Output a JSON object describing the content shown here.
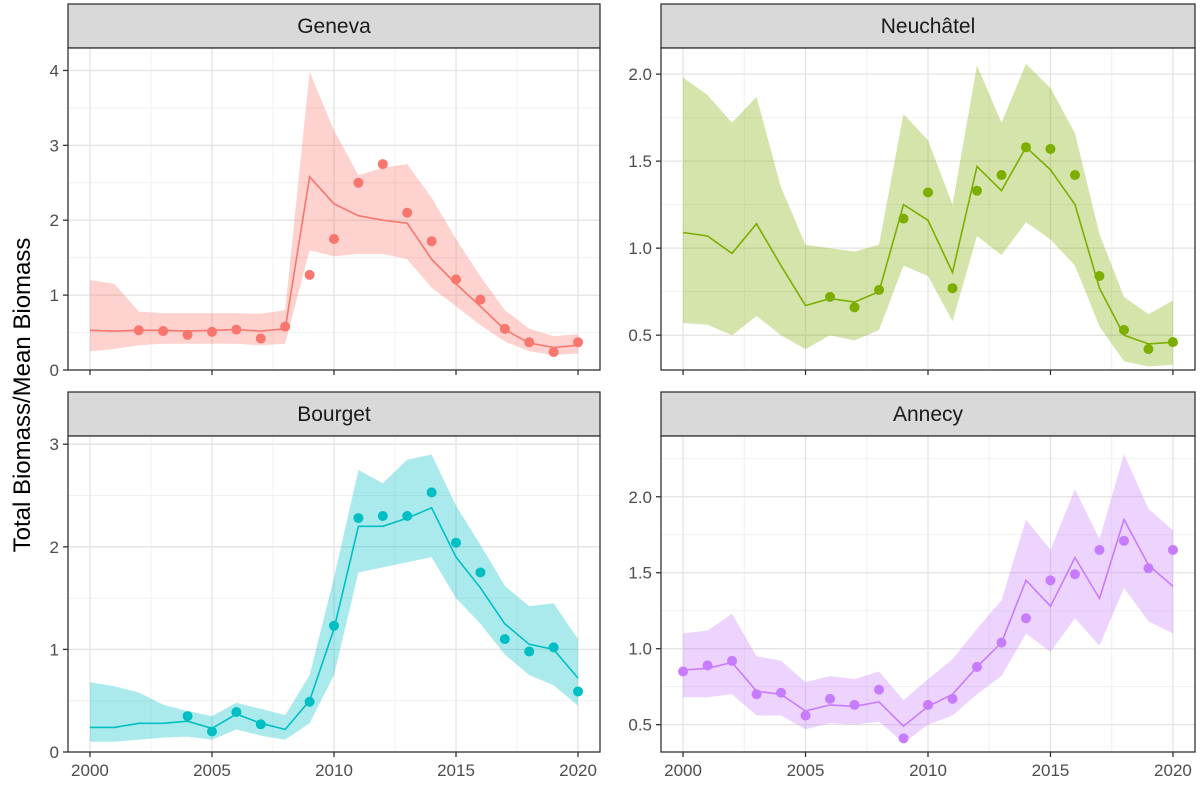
{
  "figure": {
    "ylabel": "Total Biomass/Mean Biomass"
  },
  "chart_data": [
    {
      "type": "line",
      "title": "Geneva",
      "color": "#F8766D",
      "xlim": [
        1999.1,
        2020.9
      ],
      "ylim": [
        0,
        4.3
      ],
      "x_ticks": [
        2000,
        2005,
        2010,
        2015,
        2020
      ],
      "y_ticks": [
        0,
        1,
        2,
        3,
        4
      ],
      "y_tick_labels": [
        "0",
        "1",
        "2",
        "3",
        "4"
      ],
      "grid": true,
      "x": [
        2000,
        2001,
        2002,
        2003,
        2004,
        2005,
        2006,
        2007,
        2008,
        2009,
        2010,
        2011,
        2012,
        2013,
        2014,
        2015,
        2016,
        2017,
        2018,
        2019,
        2020
      ],
      "fitted": [
        0.53,
        0.52,
        0.53,
        0.53,
        0.52,
        0.53,
        0.54,
        0.52,
        0.55,
        2.58,
        2.22,
        2.06,
        2.0,
        1.96,
        1.48,
        1.15,
        0.85,
        0.54,
        0.36,
        0.3,
        0.33
      ],
      "lower": [
        0.25,
        0.28,
        0.33,
        0.35,
        0.35,
        0.35,
        0.35,
        0.33,
        0.35,
        1.6,
        1.52,
        1.55,
        1.55,
        1.48,
        1.1,
        0.85,
        0.6,
        0.38,
        0.25,
        0.2,
        0.22
      ],
      "upper": [
        1.2,
        1.15,
        0.78,
        0.76,
        0.76,
        0.76,
        0.76,
        0.75,
        0.8,
        3.98,
        3.2,
        2.6,
        2.7,
        2.75,
        2.3,
        1.75,
        1.25,
        0.8,
        0.55,
        0.45,
        0.48
      ],
      "obs_x": [
        2002,
        2003,
        2004,
        2005,
        2006,
        2007,
        2008,
        2009,
        2010,
        2011,
        2012,
        2013,
        2014,
        2015,
        2016,
        2017,
        2018,
        2019,
        2020
      ],
      "obs_y": [
        0.53,
        0.52,
        0.47,
        0.51,
        0.54,
        0.42,
        0.58,
        1.27,
        1.75,
        2.5,
        2.75,
        2.1,
        1.72,
        1.21,
        0.94,
        0.55,
        0.37,
        0.24,
        0.37
      ]
    },
    {
      "type": "line",
      "title": "Neuchâtel",
      "color": "#7CAE00",
      "xlim": [
        1999.1,
        2020.9
      ],
      "ylim": [
        0.3,
        2.15
      ],
      "x_ticks": [
        2000,
        2005,
        2010,
        2015,
        2020
      ],
      "y_ticks": [
        0.5,
        1.0,
        1.5,
        2.0
      ],
      "y_tick_labels": [
        "0.5",
        "1.0",
        "1.5",
        "2.0"
      ],
      "grid": true,
      "x": [
        2000,
        2001,
        2002,
        2003,
        2004,
        2005,
        2006,
        2007,
        2008,
        2009,
        2010,
        2011,
        2012,
        2013,
        2014,
        2015,
        2016,
        2017,
        2018,
        2019,
        2020
      ],
      "fitted": [
        1.09,
        1.07,
        0.97,
        1.14,
        0.9,
        0.67,
        0.71,
        0.69,
        0.75,
        1.25,
        1.16,
        0.86,
        1.47,
        1.33,
        1.58,
        1.45,
        1.25,
        0.77,
        0.5,
        0.45,
        0.46
      ],
      "lower": [
        0.57,
        0.56,
        0.5,
        0.61,
        0.5,
        0.42,
        0.5,
        0.47,
        0.53,
        0.9,
        0.84,
        0.58,
        1.07,
        0.96,
        1.15,
        1.05,
        0.9,
        0.55,
        0.35,
        0.32,
        0.33
      ],
      "upper": [
        1.98,
        1.88,
        1.72,
        1.87,
        1.35,
        1.02,
        1.0,
        0.98,
        1.02,
        1.77,
        1.62,
        1.25,
        2.05,
        1.72,
        2.06,
        1.92,
        1.66,
        1.08,
        0.72,
        0.62,
        0.7
      ],
      "obs_x": [
        2006,
        2007,
        2008,
        2009,
        2010,
        2011,
        2012,
        2013,
        2014,
        2015,
        2016,
        2017,
        2018,
        2019,
        2020
      ],
      "obs_y": [
        0.72,
        0.66,
        0.76,
        1.17,
        1.32,
        0.77,
        1.33,
        1.42,
        1.58,
        1.57,
        1.42,
        0.84,
        0.53,
        0.42,
        0.46
      ]
    },
    {
      "type": "line",
      "title": "Bourget",
      "color": "#00BFC4",
      "xlim": [
        1999.1,
        2020.9
      ],
      "ylim": [
        0,
        3.08
      ],
      "x_ticks": [
        2000,
        2005,
        2010,
        2015,
        2020
      ],
      "y_ticks": [
        0,
        1,
        2,
        3
      ],
      "y_tick_labels": [
        "0",
        "1",
        "2",
        "3"
      ],
      "grid": true,
      "x": [
        2000,
        2001,
        2002,
        2003,
        2004,
        2005,
        2006,
        2007,
        2008,
        2009,
        2010,
        2011,
        2012,
        2013,
        2014,
        2015,
        2016,
        2017,
        2018,
        2019,
        2020
      ],
      "fitted": [
        0.24,
        0.24,
        0.28,
        0.28,
        0.3,
        0.23,
        0.37,
        0.28,
        0.22,
        0.5,
        1.2,
        2.2,
        2.2,
        2.28,
        2.38,
        1.9,
        1.6,
        1.25,
        1.05,
        1.0,
        0.72
      ],
      "lower": [
        0.1,
        0.1,
        0.12,
        0.14,
        0.15,
        0.12,
        0.22,
        0.16,
        0.12,
        0.28,
        0.75,
        1.75,
        1.8,
        1.85,
        1.9,
        1.5,
        1.25,
        0.95,
        0.75,
        0.65,
        0.45
      ],
      "upper": [
        0.68,
        0.64,
        0.58,
        0.46,
        0.4,
        0.35,
        0.48,
        0.42,
        0.36,
        0.75,
        1.7,
        2.75,
        2.62,
        2.85,
        2.9,
        2.4,
        2.02,
        1.62,
        1.42,
        1.45,
        1.1
      ],
      "obs_x": [
        2004,
        2005,
        2006,
        2007,
        2009,
        2010,
        2011,
        2012,
        2013,
        2014,
        2015,
        2016,
        2017,
        2018,
        2019,
        2020
      ],
      "obs_y": [
        0.35,
        0.2,
        0.39,
        0.27,
        0.49,
        1.23,
        2.28,
        2.3,
        2.3,
        2.53,
        2.04,
        1.75,
        1.1,
        0.98,
        1.02,
        0.59
      ]
    },
    {
      "type": "line",
      "title": "Annecy",
      "color": "#C77CFF",
      "xlim": [
        1999.1,
        2020.9
      ],
      "ylim": [
        0.32,
        2.4
      ],
      "x_ticks": [
        2000,
        2005,
        2010,
        2015,
        2020
      ],
      "y_ticks": [
        0.5,
        1.0,
        1.5,
        2.0
      ],
      "y_tick_labels": [
        "0.5",
        "1.0",
        "1.5",
        "2.0"
      ],
      "grid": true,
      "x": [
        2000,
        2001,
        2002,
        2003,
        2004,
        2005,
        2006,
        2007,
        2008,
        2009,
        2010,
        2011,
        2012,
        2013,
        2014,
        2015,
        2016,
        2017,
        2018,
        2019,
        2020
      ],
      "fitted": [
        0.86,
        0.87,
        0.91,
        0.72,
        0.7,
        0.59,
        0.63,
        0.62,
        0.65,
        0.49,
        0.62,
        0.7,
        0.88,
        1.04,
        1.45,
        1.28,
        1.6,
        1.33,
        1.85,
        1.55,
        1.41
      ],
      "lower": [
        0.68,
        0.68,
        0.7,
        0.56,
        0.56,
        0.47,
        0.51,
        0.5,
        0.52,
        0.38,
        0.5,
        0.56,
        0.7,
        0.82,
        1.1,
        0.98,
        1.2,
        1.02,
        1.4,
        1.18,
        1.1
      ],
      "upper": [
        1.1,
        1.12,
        1.23,
        0.95,
        0.92,
        0.78,
        0.82,
        0.8,
        0.85,
        0.66,
        0.8,
        0.93,
        1.13,
        1.32,
        1.85,
        1.65,
        2.05,
        1.72,
        2.28,
        1.92,
        1.78
      ],
      "obs_x": [
        2000,
        2001,
        2002,
        2003,
        2004,
        2005,
        2006,
        2007,
        2008,
        2009,
        2010,
        2011,
        2012,
        2013,
        2014,
        2015,
        2016,
        2017,
        2018,
        2019,
        2020
      ],
      "obs_y": [
        0.85,
        0.89,
        0.92,
        0.7,
        0.71,
        0.56,
        0.67,
        0.63,
        0.73,
        0.41,
        0.63,
        0.67,
        0.88,
        1.04,
        1.2,
        1.45,
        1.49,
        1.65,
        1.71,
        1.53,
        1.65
      ]
    }
  ]
}
